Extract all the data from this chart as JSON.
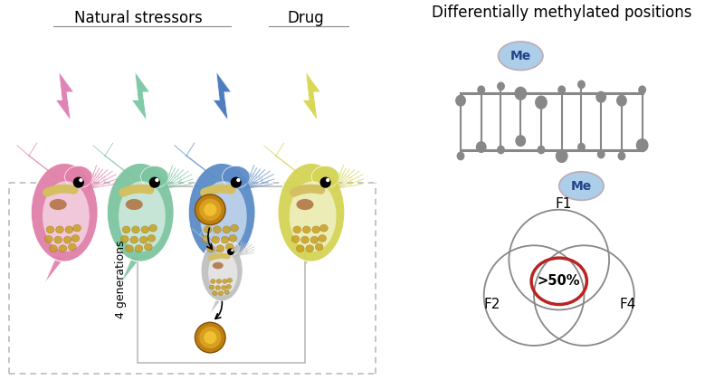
{
  "background_color": "#ffffff",
  "natural_stressors_label": "Natural stressors",
  "drug_label": "Drug",
  "dmp_label": "Differentially methylated positions",
  "four_gen_label": "4 generations",
  "fifty_pct_label": ">50%",
  "venn_labels": [
    "F1",
    "F2",
    "F4"
  ],
  "me_label": "Me",
  "flea_colors": [
    "#e080a8",
    "#7dc4a0",
    "#5b8cc8",
    "#d4d455"
  ],
  "lightning_colors": [
    "#df85b5",
    "#82c9a5",
    "#4f7ec0",
    "#d8d855"
  ],
  "dna_node_color": "#888888",
  "me_bubble_color": "#a8cce8",
  "me_bubble_edge": "#c0a8b0",
  "venn_circle_color": "#888888",
  "venn_highlight_color": "#bb2222",
  "dashed_box_color": "#bbbbbb",
  "label_line_color": "#888888"
}
